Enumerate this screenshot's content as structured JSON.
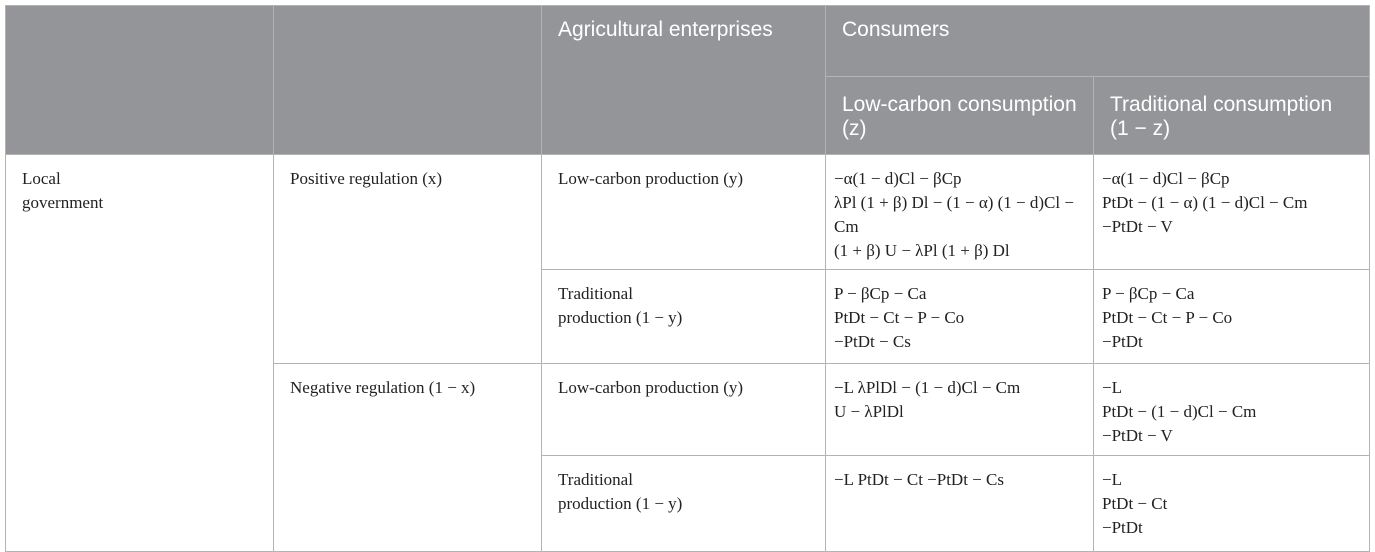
{
  "header": {
    "agricultural_enterprises": "Agricultural enterprises",
    "consumers": "Consumers",
    "low_carbon_consumption": "Low-carbon consumption (z)",
    "traditional_consumption": "Traditional consumption (1 − z)"
  },
  "rows": {
    "government_label": "Local government",
    "positive_regulation": "Positive regulation (x)",
    "negative_regulation": "Negative regulation (1 − x)",
    "low_carbon_production": "Low-carbon production (y)",
    "traditional_production": "Traditional production (1 − y)"
  },
  "cells": {
    "pos_low_z": [
      "−α(1 − d)Cl − βCp",
      "λPl (1 + β) Dl − (1 − α) (1 − d)Cl − Cm",
      "(1 + β) U − λPl (1 + β) Dl"
    ],
    "pos_low_notz": [
      "−α(1 − d)Cl − βCp",
      "PtDt − (1 − α) (1 − d)Cl − Cm",
      "−PtDt − V"
    ],
    "pos_trad_z": [
      "P − βCp − Ca",
      "PtDt − Ct − P − Co",
      "−PtDt − Cs"
    ],
    "pos_trad_notz": [
      "P − βCp − Ca",
      "PtDt − Ct − P − Co",
      "−PtDt"
    ],
    "neg_low_z": [
      "−L λPlDl − (1 − d)Cl − Cm",
      "U − λPlDl"
    ],
    "neg_low_notz": [
      "−L",
      "PtDt − (1 − d)Cl − Cm",
      "−PtDt − V"
    ],
    "neg_trad_z": [
      "−L PtDt − Ct −PtDt − Cs"
    ],
    "neg_trad_notz": [
      "−L",
      "PtDt − Ct",
      "−PtDt"
    ]
  }
}
